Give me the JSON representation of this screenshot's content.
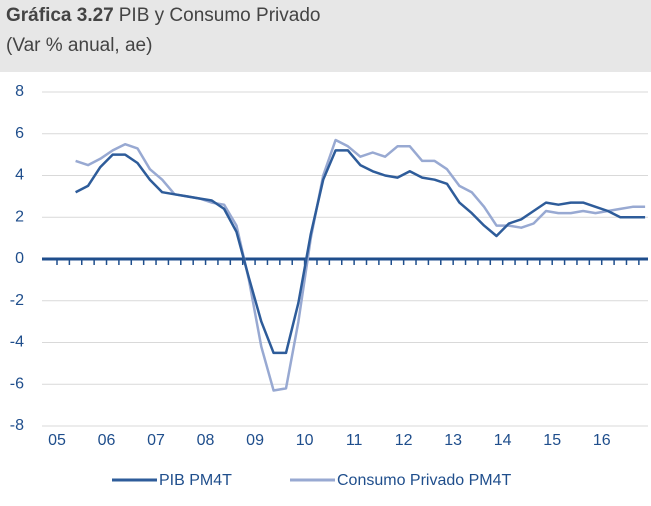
{
  "chart_data": {
    "type": "line",
    "title_bold": "Gráfica 3.27",
    "title": "PIB y Consumo Privado",
    "subtitle": "(Var % anual, ae)",
    "categories": [
      null,
      null,
      null,
      null,
      "06",
      null,
      null,
      null,
      "07",
      null,
      null,
      null,
      "08",
      null,
      null,
      null,
      "09",
      null,
      null,
      null,
      "10",
      null,
      null,
      null,
      "11",
      null,
      null,
      null,
      "12",
      null,
      null,
      null,
      "13",
      null,
      null,
      null,
      "14",
      null,
      null,
      null,
      "15",
      null,
      null,
      null,
      "16",
      null,
      null,
      null
    ],
    "first_label": "05",
    "series": [
      {
        "name": "PIB PM4T",
        "color": "#2e5c9a",
        "values": [
          null,
          3.2,
          3.5,
          4.4,
          5.0,
          5.0,
          4.6,
          3.8,
          3.2,
          3.1,
          3.0,
          2.9,
          2.8,
          2.4,
          1.3,
          -0.9,
          -3.0,
          -4.5,
          -4.5,
          -2.1,
          1.2,
          3.8,
          5.2,
          5.2,
          4.5,
          4.2,
          4.0,
          3.9,
          4.2,
          3.9,
          3.8,
          3.6,
          2.7,
          2.2,
          1.6,
          1.1,
          1.7,
          1.9,
          2.3,
          2.7,
          2.6,
          2.7,
          2.7,
          2.5,
          2.3,
          2.0,
          2.0,
          2.0
        ]
      },
      {
        "name": "Consumo Privado PM4T",
        "color": "#98a9d2",
        "values": [
          null,
          4.7,
          4.5,
          4.8,
          5.2,
          5.5,
          5.3,
          4.3,
          3.8,
          3.1,
          3.0,
          2.9,
          2.7,
          2.6,
          1.6,
          -1.0,
          -4.2,
          -6.3,
          -6.2,
          -3.0,
          1.0,
          4.0,
          5.7,
          5.4,
          4.9,
          5.1,
          4.9,
          5.4,
          5.4,
          4.7,
          4.7,
          4.3,
          3.5,
          3.2,
          2.5,
          1.6,
          1.6,
          1.5,
          1.7,
          2.3,
          2.2,
          2.2,
          2.3,
          2.2,
          2.3,
          2.4,
          2.5,
          2.5
        ]
      }
    ],
    "ylim": [
      -8,
      8
    ],
    "yticks": [
      -8,
      -6,
      -4,
      -2,
      0,
      2,
      4,
      6,
      8
    ],
    "grid": true,
    "legend": "bottom"
  }
}
